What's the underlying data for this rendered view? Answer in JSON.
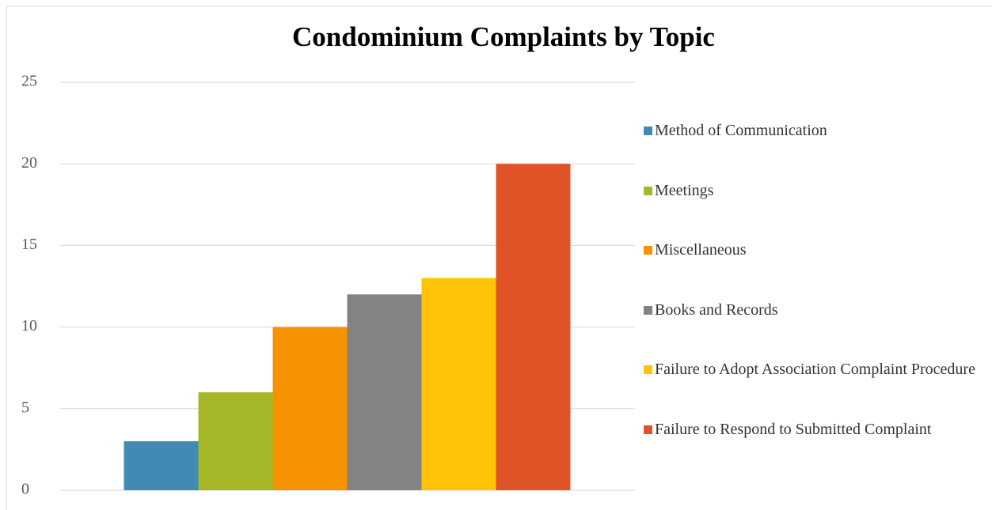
{
  "chart_data": {
    "type": "bar",
    "title": "Condominium Complaints by Topic",
    "categories": [
      null
    ],
    "series": [
      {
        "name": "Method of Communication",
        "color": "#418ab3",
        "values": [
          3
        ]
      },
      {
        "name": "Meetings",
        "color": "#a6b727",
        "values": [
          6
        ]
      },
      {
        "name": "Miscellaneous",
        "color": "#f69200",
        "values": [
          10
        ]
      },
      {
        "name": "Books and Records",
        "color": "#838383",
        "values": [
          12
        ]
      },
      {
        "name": "Failure to Adopt Association Complaint Procedure",
        "color": "#fec306",
        "values": [
          13
        ]
      },
      {
        "name": "Failure to Respond to Submitted Complaint",
        "color": "#df5327",
        "values": [
          20
        ]
      }
    ],
    "ylim": [
      0,
      25
    ],
    "yticks": [
      0,
      5,
      10,
      15,
      20,
      25
    ],
    "grid": true,
    "legend": "right"
  }
}
